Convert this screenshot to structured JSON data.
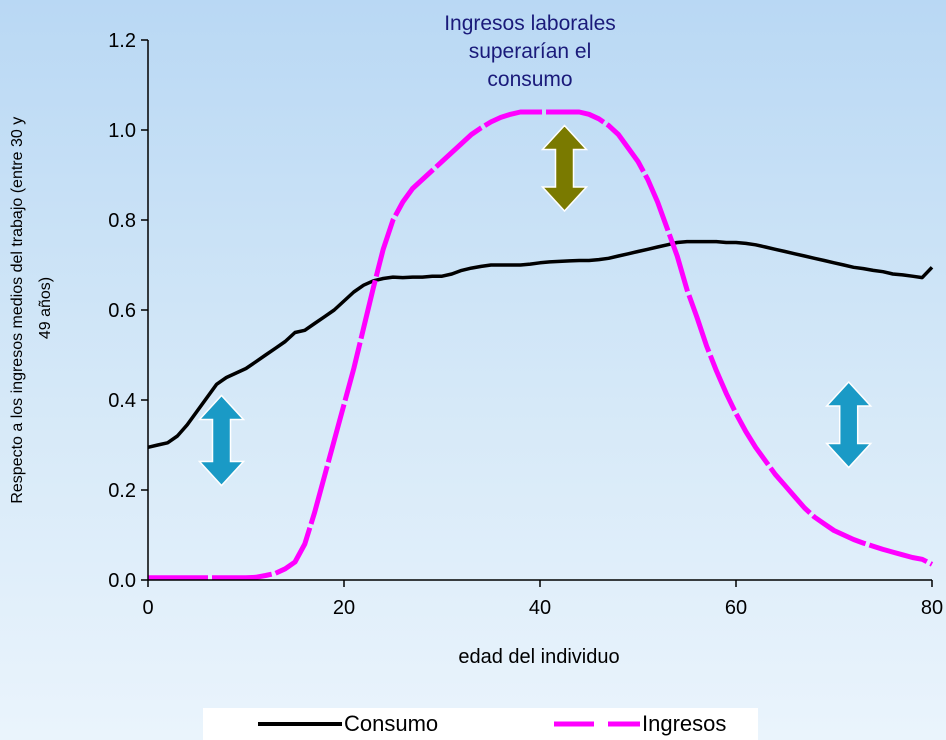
{
  "chart_data": {
    "type": "line",
    "title": "",
    "xlabel": "edad del individuo",
    "ylabel": "Respecto a los ingresos medios del trabajo (entre 30 y 49 años)",
    "ylabel_lines": [
      "Respecto a los ingresos medios del trabajo (entre 30 y",
      "49 años)"
    ],
    "xlim": [
      0,
      80
    ],
    "ylim": [
      0,
      1.2
    ],
    "x_ticks": [
      0,
      20,
      40,
      60,
      80
    ],
    "x_tick_labels": [
      "0",
      "20",
      "40",
      "60",
      "80"
    ],
    "y_ticks": [
      0,
      0.2,
      0.4,
      0.6,
      0.8,
      1.0,
      1.2
    ],
    "y_tick_labels": [
      "0.0",
      "0.2",
      "0.4",
      "0.6",
      "0.8",
      "1.0",
      "1.2"
    ],
    "grid": false,
    "legend_position": "bottom",
    "annotation": {
      "text_lines": [
        "Ingresos laborales",
        "superarían el",
        "consumo"
      ],
      "color": "#1a1a7a"
    },
    "arrows": [
      {
        "x": 7.5,
        "y_low": 0.21,
        "y_high": 0.41,
        "color": "#1a9ac6"
      },
      {
        "x": 42.5,
        "y_low": 0.82,
        "y_high": 1.01,
        "color": "#7a7a00"
      },
      {
        "x": 71.5,
        "y_low": 0.25,
        "y_high": 0.44,
        "color": "#1a9ac6"
      }
    ],
    "series": [
      {
        "name": "Consumo",
        "color": "#000000",
        "style": "solid",
        "x": [
          0,
          1,
          2,
          3,
          4,
          5,
          6,
          7,
          8,
          9,
          10,
          11,
          12,
          13,
          14,
          15,
          16,
          17,
          18,
          19,
          20,
          21,
          22,
          23,
          24,
          25,
          26,
          27,
          28,
          29,
          30,
          31,
          32,
          33,
          34,
          35,
          36,
          37,
          38,
          39,
          40,
          41,
          42,
          43,
          44,
          45,
          46,
          47,
          48,
          49,
          50,
          51,
          52,
          53,
          54,
          55,
          56,
          57,
          58,
          59,
          60,
          61,
          62,
          63,
          64,
          65,
          66,
          67,
          68,
          69,
          70,
          71,
          72,
          73,
          74,
          75,
          76,
          77,
          78,
          79,
          80
        ],
        "y": [
          0.295,
          0.3,
          0.305,
          0.32,
          0.345,
          0.375,
          0.405,
          0.435,
          0.45,
          0.46,
          0.47,
          0.485,
          0.5,
          0.515,
          0.53,
          0.55,
          0.555,
          0.57,
          0.585,
          0.6,
          0.62,
          0.64,
          0.655,
          0.665,
          0.67,
          0.673,
          0.672,
          0.673,
          0.673,
          0.675,
          0.675,
          0.68,
          0.688,
          0.693,
          0.697,
          0.7,
          0.7,
          0.7,
          0.7,
          0.702,
          0.705,
          0.707,
          0.708,
          0.709,
          0.71,
          0.71,
          0.712,
          0.715,
          0.72,
          0.725,
          0.73,
          0.735,
          0.74,
          0.745,
          0.75,
          0.752,
          0.752,
          0.752,
          0.752,
          0.75,
          0.75,
          0.748,
          0.745,
          0.74,
          0.735,
          0.73,
          0.725,
          0.72,
          0.715,
          0.71,
          0.705,
          0.7,
          0.695,
          0.692,
          0.688,
          0.685,
          0.68,
          0.678,
          0.675,
          0.672,
          0.695
        ]
      },
      {
        "name": "Ingresos",
        "color": "#ff00ff",
        "style": "dashed",
        "x": [
          0,
          1,
          2,
          3,
          4,
          5,
          6,
          7,
          8,
          9,
          10,
          11,
          12,
          13,
          14,
          15,
          16,
          17,
          18,
          19,
          20,
          21,
          22,
          23,
          24,
          25,
          26,
          27,
          28,
          29,
          30,
          31,
          32,
          33,
          34,
          35,
          36,
          37,
          38,
          39,
          40,
          41,
          42,
          43,
          44,
          45,
          46,
          47,
          48,
          49,
          50,
          51,
          52,
          53,
          54,
          55,
          56,
          57,
          58,
          59,
          60,
          61,
          62,
          63,
          64,
          65,
          66,
          67,
          68,
          69,
          70,
          71,
          72,
          73,
          74,
          75,
          76,
          77,
          78,
          79,
          80
        ],
        "y": [
          0.005,
          0.005,
          0.005,
          0.005,
          0.005,
          0.005,
          0.005,
          0.005,
          0.005,
          0.005,
          0.005,
          0.006,
          0.01,
          0.015,
          0.025,
          0.04,
          0.08,
          0.15,
          0.23,
          0.31,
          0.39,
          0.47,
          0.56,
          0.65,
          0.735,
          0.8,
          0.84,
          0.87,
          0.89,
          0.91,
          0.93,
          0.95,
          0.97,
          0.99,
          1.005,
          1.018,
          1.028,
          1.035,
          1.04,
          1.04,
          1.04,
          1.04,
          1.04,
          1.04,
          1.04,
          1.035,
          1.025,
          1.01,
          0.99,
          0.96,
          0.93,
          0.89,
          0.84,
          0.78,
          0.72,
          0.645,
          0.585,
          0.52,
          0.465,
          0.415,
          0.37,
          0.33,
          0.295,
          0.265,
          0.235,
          0.21,
          0.185,
          0.16,
          0.14,
          0.125,
          0.11,
          0.1,
          0.09,
          0.082,
          0.075,
          0.068,
          0.062,
          0.056,
          0.05,
          0.046,
          0.035
        ]
      }
    ]
  }
}
